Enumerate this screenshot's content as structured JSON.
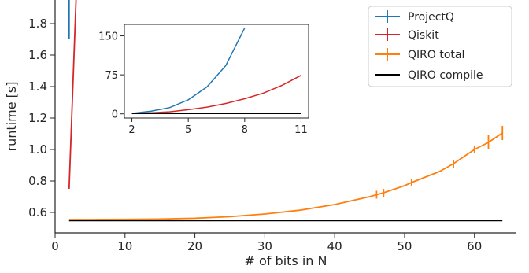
{
  "chart_data": {
    "type": "line",
    "xlabel": "# of bits in N",
    "ylabel": "runtime [s]",
    "xlim": [
      0,
      66
    ],
    "ylim": [
      0.47,
      1.95
    ],
    "xticks": [
      "0",
      "10",
      "20",
      "30",
      "40",
      "50",
      "60"
    ],
    "yticks": [
      "0.6",
      "0.8",
      "1.0",
      "1.2",
      "1.4",
      "1.6",
      "1.8"
    ],
    "legend_position": "top-right",
    "series": [
      {
        "name": "ProjectQ",
        "color": "#1f77b4",
        "x": [
          2,
          2,
          2
        ],
        "y": [
          1.7,
          1.85,
          1.95
        ]
      },
      {
        "name": "Qiskit",
        "color": "#d62728",
        "x": [
          2,
          2.5,
          3
        ],
        "y": [
          0.75,
          1.35,
          1.95
        ]
      },
      {
        "name": "QIRO total",
        "color": "#ff7f0e",
        "x": [
          2,
          5,
          10,
          15,
          20,
          25,
          30,
          35,
          40,
          45,
          47,
          50,
          51,
          55,
          57,
          60,
          62,
          64
        ],
        "y": [
          0.555,
          0.555,
          0.556,
          0.558,
          0.563,
          0.573,
          0.59,
          0.614,
          0.65,
          0.7,
          0.725,
          0.77,
          0.79,
          0.86,
          0.91,
          1.0,
          1.045,
          1.105
        ],
        "errorbars_at": [
          46,
          47,
          51,
          57,
          60,
          62,
          64
        ]
      },
      {
        "name": "QIRO compile",
        "color": "#000000",
        "x": [
          2,
          64
        ],
        "y": [
          0.548,
          0.548
        ]
      }
    ],
    "inset": {
      "xlim": [
        1.6,
        11.4
      ],
      "ylim": [
        -8,
        172
      ],
      "xticks": [
        "2",
        "5",
        "8",
        "11"
      ],
      "yticks": [
        "0",
        "75",
        "150"
      ],
      "series": [
        {
          "name": "ProjectQ",
          "color": "#1f77b4",
          "x": [
            2,
            3,
            4,
            5,
            6,
            7,
            8
          ],
          "y": [
            1,
            5,
            12,
            27,
            52,
            93,
            165
          ]
        },
        {
          "name": "Qiskit",
          "color": "#d62728",
          "x": [
            2,
            3,
            4,
            5,
            6,
            7,
            8,
            9,
            10,
            11
          ],
          "y": [
            0.75,
            2,
            4,
            8,
            13,
            20,
            29,
            40,
            55,
            74
          ]
        },
        {
          "name": "QIRO total",
          "color": "#ff7f0e",
          "x": [
            2,
            11
          ],
          "y": [
            0.6,
            0.6
          ]
        },
        {
          "name": "QIRO compile",
          "color": "#000000",
          "x": [
            2,
            11
          ],
          "y": [
            0.55,
            0.55
          ]
        }
      ]
    }
  }
}
